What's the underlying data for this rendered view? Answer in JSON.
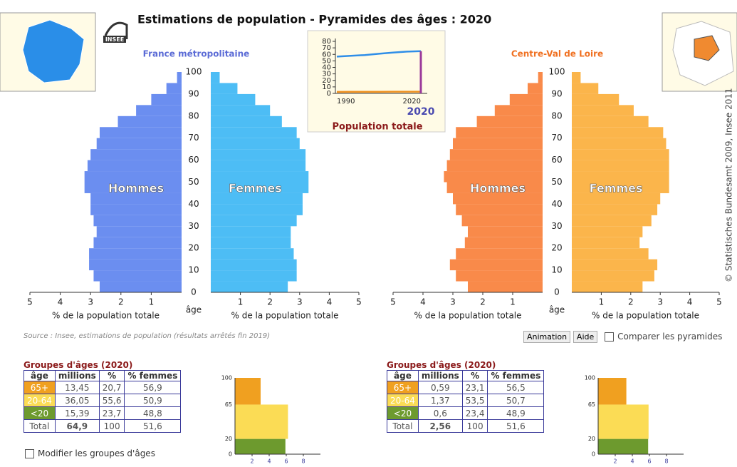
{
  "header": {
    "title": "Estimations de population - Pyramides des âges : 2020",
    "logo": "INSEE"
  },
  "pyramids": [
    {
      "region": "France métropolitaine",
      "region_color": "#5b6bd6",
      "bins": [
        0,
        5,
        10,
        15,
        20,
        25,
        30,
        35,
        40,
        45,
        50,
        55,
        60,
        65,
        70,
        75,
        80,
        85,
        90,
        95,
        100
      ],
      "men": {
        "name": "Hommes",
        "color": "#6b8ef0",
        "values": [
          2.7,
          2.9,
          3.05,
          3.05,
          2.9,
          2.8,
          2.9,
          3.0,
          3.0,
          3.2,
          3.2,
          3.1,
          3.0,
          2.8,
          2.7,
          2.1,
          1.5,
          1.0,
          0.5,
          0.15
        ]
      },
      "women": {
        "name": "Femmes",
        "color": "#4dbdf5",
        "values": [
          2.6,
          2.9,
          2.9,
          2.8,
          2.7,
          2.7,
          2.9,
          3.1,
          3.1,
          3.3,
          3.3,
          3.2,
          3.2,
          3.0,
          2.9,
          2.4,
          2.0,
          1.5,
          0.9,
          0.3
        ]
      },
      "xlim": [
        0,
        5
      ],
      "xticks": [
        1,
        2,
        3,
        4,
        5
      ],
      "ylim": [
        0,
        100
      ],
      "yticks": [
        0,
        10,
        20,
        30,
        40,
        50,
        60,
        70,
        80,
        90,
        100
      ],
      "xlabel": "% de la population totale",
      "ylabel": "âge"
    },
    {
      "region": "Centre-Val de Loire",
      "region_color": "#f07020",
      "bins": [
        0,
        5,
        10,
        15,
        20,
        25,
        30,
        35,
        40,
        45,
        50,
        55,
        60,
        65,
        70,
        75,
        80,
        85,
        90,
        95,
        100
      ],
      "men": {
        "name": "Hommes",
        "color": "#f98a4a",
        "values": [
          2.5,
          2.9,
          3.1,
          2.9,
          2.6,
          2.5,
          2.7,
          2.9,
          3.0,
          3.2,
          3.3,
          3.2,
          3.1,
          3.0,
          2.9,
          2.2,
          1.6,
          1.1,
          0.5,
          0.15
        ]
      },
      "women": {
        "name": "Femmes",
        "color": "#fbb54b",
        "values": [
          2.4,
          2.8,
          2.9,
          2.6,
          2.3,
          2.4,
          2.7,
          2.9,
          3.0,
          3.3,
          3.3,
          3.3,
          3.3,
          3.2,
          3.1,
          2.6,
          2.1,
          1.6,
          0.9,
          0.3
        ]
      },
      "xlim": [
        0,
        5
      ],
      "xticks": [
        1,
        2,
        3,
        4,
        5
      ],
      "ylim": [
        0,
        100
      ],
      "yticks": [
        0,
        10,
        20,
        30,
        40,
        50,
        60,
        70,
        80,
        90,
        100
      ],
      "xlabel": "% de la population totale",
      "ylabel": "âge"
    }
  ],
  "inset": {
    "label": "Population totale",
    "selected": 2020,
    "x": [
      1990,
      1995,
      2000,
      2005,
      2010,
      2015,
      2020
    ],
    "series": [
      {
        "color": "#2f8ee8",
        "values": [
          56.6,
          57.8,
          58.9,
          61.0,
          62.8,
          64.3,
          64.9
        ]
      },
      {
        "color": "#f0901e",
        "values": [
          2.37,
          2.4,
          2.44,
          2.5,
          2.54,
          2.56,
          2.56
        ]
      }
    ],
    "xlim": [
      1990,
      2020
    ],
    "xticks": [
      1990,
      2020
    ],
    "ylim": [
      0,
      80
    ],
    "yticks": [
      0,
      10,
      20,
      30,
      40,
      50,
      60,
      70,
      80
    ]
  },
  "source": "Source : Insee, estimations de population (résultats arrêtés fin 2019)",
  "buttons": [
    "Animation",
    "Aide"
  ],
  "compare": "Comparer les pyramides",
  "modify": "Modifier les groupes d'âges",
  "copyright": "© Statistisches Bundesamt 2009, Insee 2011",
  "tables": [
    {
      "title": "Groupes d'âges (2020)",
      "header": [
        "âge",
        "millions",
        "%",
        "% femmes"
      ],
      "rows": [
        [
          "65+",
          "13,45",
          "20,7",
          "56,9"
        ],
        [
          "20-64",
          "36,05",
          "55,6",
          "50,9"
        ],
        [
          "<20",
          "15,39",
          "23,7",
          "48,8"
        ],
        [
          "Total",
          "64,9",
          "100",
          "51,6"
        ]
      ]
    },
    {
      "title": "Groupes d'âges (2020)",
      "header": [
        "âge",
        "millions",
        "%",
        "% femmes"
      ],
      "rows": [
        [
          "65+",
          "0,59",
          "23,1",
          "56,5"
        ],
        [
          "20-64",
          "1,37",
          "53,5",
          "50,7"
        ],
        [
          "<20",
          "0,6",
          "23,4",
          "48,9"
        ],
        [
          "Total",
          "2,56",
          "100",
          "51,6"
        ]
      ]
    }
  ],
  "age_bars": [
    {
      "edges": [
        0,
        20,
        65,
        100
      ],
      "values": [
        5.9,
        6.2,
        3.0
      ],
      "colors": [
        "#6d9a2e",
        "#fbdc55",
        "#f0a020"
      ],
      "xlim": [
        0,
        10
      ],
      "xticks": [
        2,
        4,
        6,
        8
      ],
      "ylim": [
        0,
        100
      ]
    },
    {
      "edges": [
        0,
        20,
        65,
        100
      ],
      "values": [
        5.85,
        5.9,
        3.3
      ],
      "colors": [
        "#6d9a2e",
        "#fbdc55",
        "#f0a020"
      ],
      "xlim": [
        0,
        10
      ],
      "xticks": [
        2,
        4,
        6,
        8
      ],
      "ylim": [
        0,
        100
      ]
    }
  ]
}
